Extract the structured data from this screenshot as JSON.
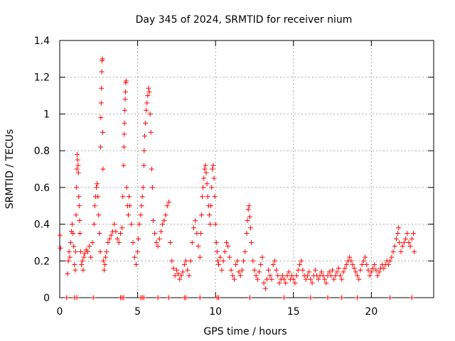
{
  "chart_data": {
    "type": "scatter",
    "title": "Day 345 of 2024, SRMTID for receiver nium",
    "xlabel": "GPS time / hours",
    "ylabel": "SRMTID / TECUs",
    "xlim": [
      0,
      24
    ],
    "ylim": [
      0,
      1.4
    ],
    "x_ticks": [
      0,
      5,
      10,
      15,
      20
    ],
    "y_ticks": [
      0,
      0.2,
      0.4,
      0.6,
      0.8,
      1,
      1.2,
      1.4
    ],
    "x_tick_labels": [
      "0",
      "5",
      "10",
      "15",
      "20"
    ],
    "y_tick_labels": [
      "0",
      "0.2",
      "0.4",
      "0.6",
      "0.8",
      "1",
      "1.2",
      "1.4"
    ],
    "grid": true,
    "marker": "+",
    "color": "#ff0000",
    "series": [
      {
        "name": "SRMTID",
        "points": [
          [
            0.02,
            0.34
          ],
          [
            0.05,
            0.27
          ],
          [
            0.5,
            0.13
          ],
          [
            0.55,
            0.2
          ],
          [
            0.6,
            0.25
          ],
          [
            0.65,
            0.22
          ],
          [
            0.7,
            0.3
          ],
          [
            0.75,
            0.36
          ],
          [
            0.8,
            0.4
          ],
          [
            0.85,
            0.35
          ],
          [
            0.9,
            0.28
          ],
          [
            0.95,
            0.18
          ],
          [
            1.0,
            0.15
          ],
          [
            1.02,
            0.25
          ],
          [
            1.05,
            0.45
          ],
          [
            1.08,
            0.6
          ],
          [
            1.1,
            0.7
          ],
          [
            1.12,
            0.78
          ],
          [
            1.15,
            0.75
          ],
          [
            1.18,
            0.72
          ],
          [
            1.2,
            0.68
          ],
          [
            1.22,
            0.55
          ],
          [
            1.25,
            0.5
          ],
          [
            1.28,
            0.42
          ],
          [
            1.3,
            0.35
          ],
          [
            1.35,
            0.25
          ],
          [
            1.4,
            0.18
          ],
          [
            1.45,
            0.2
          ],
          [
            1.5,
            0.15
          ],
          [
            1.55,
            0.22
          ],
          [
            1.6,
            0.24
          ],
          [
            1.7,
            0.26
          ],
          [
            1.8,
            0.25
          ],
          [
            1.9,
            0.28
          ],
          [
            2.0,
            0.22
          ],
          [
            2.1,
            0.3
          ],
          [
            2.2,
            0.4
          ],
          [
            2.25,
            0.5
          ],
          [
            2.3,
            0.55
          ],
          [
            2.35,
            0.6
          ],
          [
            2.4,
            0.62
          ],
          [
            2.45,
            0.55
          ],
          [
            2.5,
            0.45
          ],
          [
            2.55,
            0.35
          ],
          [
            2.6,
            0.25
          ],
          [
            2.62,
            0.82
          ],
          [
            2.64,
            0.98
          ],
          [
            2.66,
            1.06
          ],
          [
            2.68,
            1.14
          ],
          [
            2.7,
            1.23
          ],
          [
            2.72,
            1.29
          ],
          [
            2.74,
            1.3
          ],
          [
            2.76,
            0.9
          ],
          [
            2.78,
            0.7
          ],
          [
            2.8,
            0.2
          ],
          [
            2.85,
            0.15
          ],
          [
            2.9,
            0.18
          ],
          [
            2.95,
            0.22
          ],
          [
            3.0,
            0.25
          ],
          [
            3.1,
            0.3
          ],
          [
            3.2,
            0.32
          ],
          [
            3.3,
            0.34
          ],
          [
            3.4,
            0.36
          ],
          [
            3.5,
            0.4
          ],
          [
            3.6,
            0.36
          ],
          [
            3.7,
            0.32
          ],
          [
            3.8,
            0.3
          ],
          [
            3.9,
            0.35
          ],
          [
            4.0,
            0.38
          ],
          [
            4.05,
            0.55
          ],
          [
            4.1,
            0.72
          ],
          [
            4.12,
            0.82
          ],
          [
            4.14,
            0.89
          ],
          [
            4.16,
            0.95
          ],
          [
            4.18,
            1.02
          ],
          [
            4.2,
            1.08
          ],
          [
            4.22,
            1.12
          ],
          [
            4.24,
            1.17
          ],
          [
            4.26,
            1.18
          ],
          [
            4.3,
            0.6
          ],
          [
            4.35,
            0.5
          ],
          [
            4.4,
            0.45
          ],
          [
            4.45,
            0.55
          ],
          [
            4.5,
            0.5
          ],
          [
            4.6,
            0.4
          ],
          [
            4.7,
            0.3
          ],
          [
            4.8,
            0.22
          ],
          [
            4.9,
            0.18
          ],
          [
            5.0,
            0.25
          ],
          [
            5.05,
            0.32
          ],
          [
            5.1,
            0.4
          ],
          [
            5.2,
            0.45
          ],
          [
            5.25,
            0.5
          ],
          [
            5.3,
            0.55
          ],
          [
            5.35,
            0.6
          ],
          [
            5.4,
            0.72
          ],
          [
            5.42,
            0.8
          ],
          [
            5.45,
            0.88
          ],
          [
            5.5,
            0.95
          ],
          [
            5.55,
            1.02
          ],
          [
            5.6,
            1.06
          ],
          [
            5.65,
            1.1
          ],
          [
            5.7,
            1.14
          ],
          [
            5.75,
            1.12
          ],
          [
            5.8,
            1.0
          ],
          [
            5.85,
            0.9
          ],
          [
            5.9,
            0.7
          ],
          [
            5.95,
            0.6
          ],
          [
            6.0,
            0.42
          ],
          [
            6.1,
            0.35
          ],
          [
            6.2,
            0.3
          ],
          [
            6.3,
            0.28
          ],
          [
            6.4,
            0.32
          ],
          [
            6.5,
            0.36
          ],
          [
            6.6,
            0.4
          ],
          [
            6.7,
            0.42
          ],
          [
            6.8,
            0.45
          ],
          [
            6.9,
            0.5
          ],
          [
            7.0,
            0.52
          ],
          [
            7.1,
            0.3
          ],
          [
            7.2,
            0.2
          ],
          [
            7.3,
            0.16
          ],
          [
            7.4,
            0.12
          ],
          [
            7.5,
            0.15
          ],
          [
            7.6,
            0.13
          ],
          [
            7.7,
            0.1
          ],
          [
            7.8,
            0.12
          ],
          [
            7.9,
            0.14
          ],
          [
            8.0,
            0.18
          ],
          [
            8.1,
            0.2
          ],
          [
            8.2,
            0.15
          ],
          [
            8.3,
            0.12
          ],
          [
            8.4,
            0.2
          ],
          [
            8.5,
            0.3
          ],
          [
            8.6,
            0.38
          ],
          [
            8.7,
            0.42
          ],
          [
            8.8,
            0.35
          ],
          [
            8.9,
            0.28
          ],
          [
            9.0,
            0.22
          ],
          [
            9.05,
            0.35
          ],
          [
            9.1,
            0.45
          ],
          [
            9.15,
            0.55
          ],
          [
            9.2,
            0.6
          ],
          [
            9.25,
            0.65
          ],
          [
            9.3,
            0.7
          ],
          [
            9.35,
            0.72
          ],
          [
            9.4,
            0.68
          ],
          [
            9.45,
            0.62
          ],
          [
            9.5,
            0.55
          ],
          [
            9.55,
            0.5
          ],
          [
            9.6,
            0.45
          ],
          [
            9.65,
            0.4
          ],
          [
            9.7,
            0.5
          ],
          [
            9.75,
            0.6
          ],
          [
            9.8,
            0.7
          ],
          [
            9.85,
            0.72
          ],
          [
            9.9,
            0.65
          ],
          [
            9.95,
            0.55
          ],
          [
            10.0,
            0.4
          ],
          [
            10.05,
            0.3
          ],
          [
            10.1,
            0.25
          ],
          [
            10.15,
            0.2
          ],
          [
            10.2,
            0.18
          ],
          [
            10.3,
            0.22
          ],
          [
            10.4,
            0.15
          ],
          [
            10.5,
            0.2
          ],
          [
            10.6,
            0.25
          ],
          [
            10.7,
            0.3
          ],
          [
            10.8,
            0.28
          ],
          [
            10.9,
            0.22
          ],
          [
            11.0,
            0.15
          ],
          [
            11.1,
            0.12
          ],
          [
            11.2,
            0.1
          ],
          [
            11.3,
            0.18
          ],
          [
            11.4,
            0.2
          ],
          [
            11.5,
            0.14
          ],
          [
            11.6,
            0.12
          ],
          [
            11.7,
            0.15
          ],
          [
            11.8,
            0.2
          ],
          [
            11.9,
            0.25
          ],
          [
            12.0,
            0.35
          ],
          [
            12.05,
            0.42
          ],
          [
            12.1,
            0.48
          ],
          [
            12.15,
            0.5
          ],
          [
            12.2,
            0.44
          ],
          [
            12.25,
            0.38
          ],
          [
            12.3,
            0.3
          ],
          [
            12.4,
            0.2
          ],
          [
            12.5,
            0.15
          ],
          [
            12.6,
            0.12
          ],
          [
            12.7,
            0.1
          ],
          [
            12.8,
            0.14
          ],
          [
            12.9,
            0.18
          ],
          [
            13.0,
            0.22
          ],
          [
            13.1,
            0.08
          ],
          [
            13.2,
            0.05
          ],
          [
            13.3,
            0.1
          ],
          [
            13.4,
            0.15
          ],
          [
            13.5,
            0.12
          ],
          [
            13.6,
            0.1
          ],
          [
            13.7,
            0.18
          ],
          [
            13.8,
            0.2
          ],
          [
            13.9,
            0.15
          ],
          [
            14.0,
            0.12
          ],
          [
            14.1,
            0.08
          ],
          [
            14.2,
            0.1
          ],
          [
            14.3,
            0.12
          ],
          [
            14.4,
            0.1
          ],
          [
            14.5,
            0.08
          ],
          [
            14.6,
            0.12
          ],
          [
            14.7,
            0.14
          ],
          [
            14.8,
            0.1
          ],
          [
            14.9,
            0.12
          ],
          [
            15.0,
            0.1
          ],
          [
            15.1,
            0.08
          ],
          [
            15.2,
            0.12
          ],
          [
            15.3,
            0.15
          ],
          [
            15.4,
            0.18
          ],
          [
            15.5,
            0.2
          ],
          [
            15.6,
            0.15
          ],
          [
            15.7,
            0.12
          ],
          [
            15.8,
            0.1
          ],
          [
            15.9,
            0.12
          ],
          [
            16.0,
            0.14
          ],
          [
            16.1,
            0.1
          ],
          [
            16.2,
            0.08
          ],
          [
            16.3,
            0.12
          ],
          [
            16.4,
            0.15
          ],
          [
            16.5,
            0.12
          ],
          [
            16.6,
            0.1
          ],
          [
            16.7,
            0.12
          ],
          [
            16.8,
            0.14
          ],
          [
            16.9,
            0.12
          ],
          [
            17.0,
            0.1
          ],
          [
            17.1,
            0.08
          ],
          [
            17.2,
            0.12
          ],
          [
            17.3,
            0.14
          ],
          [
            17.4,
            0.12
          ],
          [
            17.5,
            0.15
          ],
          [
            17.6,
            0.1
          ],
          [
            17.7,
            0.12
          ],
          [
            17.8,
            0.14
          ],
          [
            17.9,
            0.16
          ],
          [
            18.0,
            0.12
          ],
          [
            18.1,
            0.1
          ],
          [
            18.2,
            0.14
          ],
          [
            18.3,
            0.16
          ],
          [
            18.4,
            0.18
          ],
          [
            18.5,
            0.2
          ],
          [
            18.6,
            0.22
          ],
          [
            18.7,
            0.2
          ],
          [
            18.8,
            0.18
          ],
          [
            18.9,
            0.16
          ],
          [
            19.0,
            0.14
          ],
          [
            19.1,
            0.12
          ],
          [
            19.2,
            0.1
          ],
          [
            19.3,
            0.15
          ],
          [
            19.4,
            0.18
          ],
          [
            19.5,
            0.2
          ],
          [
            19.6,
            0.22
          ],
          [
            19.7,
            0.18
          ],
          [
            19.8,
            0.15
          ],
          [
            19.9,
            0.12
          ],
          [
            20.0,
            0.14
          ],
          [
            20.1,
            0.16
          ],
          [
            20.2,
            0.18
          ],
          [
            20.3,
            0.15
          ],
          [
            20.4,
            0.12
          ],
          [
            20.5,
            0.14
          ],
          [
            20.6,
            0.16
          ],
          [
            20.7,
            0.18
          ],
          [
            20.8,
            0.16
          ],
          [
            20.9,
            0.18
          ],
          [
            21.0,
            0.2
          ],
          [
            21.1,
            0.18
          ],
          [
            21.2,
            0.2
          ],
          [
            21.3,
            0.22
          ],
          [
            21.4,
            0.25
          ],
          [
            21.5,
            0.28
          ],
          [
            21.6,
            0.32
          ],
          [
            21.7,
            0.35
          ],
          [
            21.75,
            0.38
          ],
          [
            21.8,
            0.3
          ],
          [
            21.9,
            0.25
          ],
          [
            22.0,
            0.28
          ],
          [
            22.1,
            0.3
          ],
          [
            22.2,
            0.32
          ],
          [
            22.3,
            0.35
          ],
          [
            22.4,
            0.3
          ],
          [
            22.5,
            0.28
          ],
          [
            22.6,
            0.32
          ],
          [
            22.7,
            0.35
          ],
          [
            22.75,
            0.25
          ],
          [
            0.45,
            0
          ],
          [
            0.95,
            0
          ],
          [
            1.1,
            0
          ],
          [
            2.15,
            0
          ],
          [
            3.9,
            0
          ],
          [
            4.0,
            0
          ],
          [
            4.1,
            0
          ],
          [
            5.2,
            0
          ],
          [
            5.3,
            0
          ],
          [
            5.4,
            0
          ],
          [
            6.3,
            0
          ],
          [
            7.0,
            0
          ],
          [
            8.0,
            0
          ],
          [
            8.1,
            0
          ],
          [
            9.0,
            0
          ],
          [
            10.1,
            0
          ],
          [
            10.2,
            0
          ],
          [
            12.2,
            0
          ],
          [
            14.4,
            0
          ],
          [
            16.1,
            0
          ],
          [
            17.2,
            0
          ],
          [
            18.1,
            0
          ],
          [
            19.1,
            0
          ],
          [
            21.2,
            0
          ],
          [
            22.6,
            0
          ]
        ]
      }
    ]
  }
}
